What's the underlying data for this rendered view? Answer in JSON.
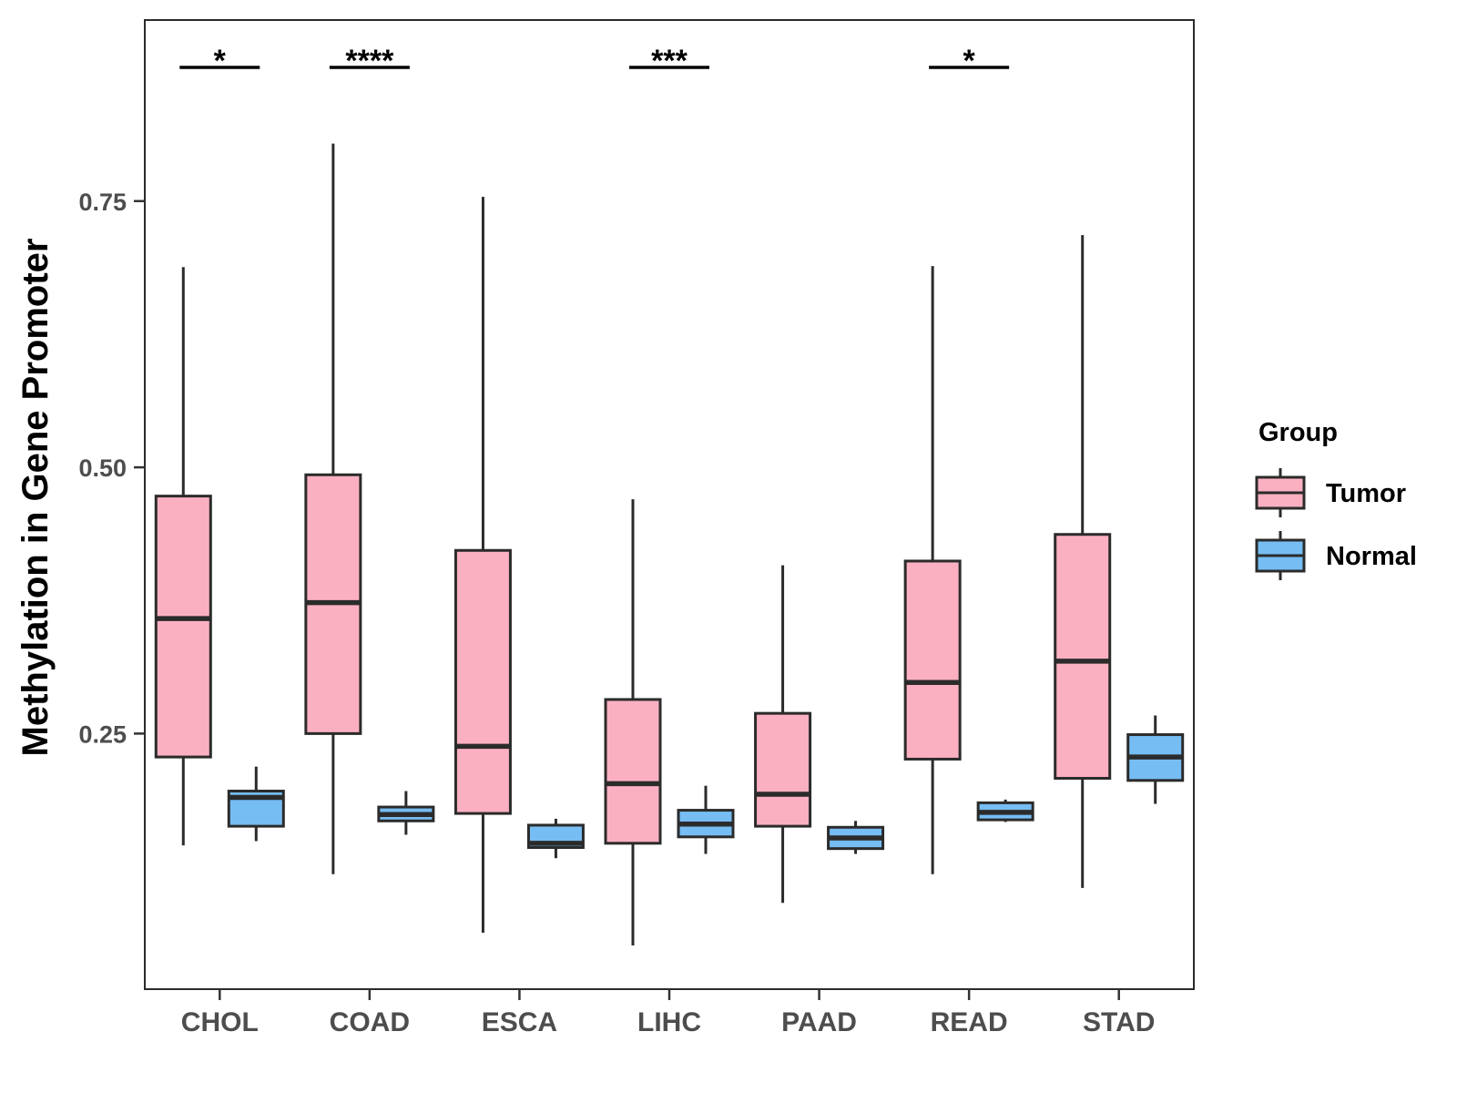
{
  "chart_data": {
    "type": "boxplot",
    "title": "",
    "xlabel": "",
    "ylabel": "Methylation in Gene Promoter",
    "ylim": [
      0.01,
      0.92
    ],
    "yticks": [
      0.25,
      0.5,
      0.75
    ],
    "ytick_labels": [
      "0.25",
      "0.50",
      "0.75"
    ],
    "grid": false,
    "legend_position": "right",
    "categories": [
      "CHOL",
      "COAD",
      "ESCA",
      "LIHC",
      "PAAD",
      "READ",
      "STAD"
    ],
    "series": [
      {
        "name": "Tumor",
        "color": "#FBB0C1",
        "boxes": [
          {
            "min": 0.145,
            "q1": 0.228,
            "median": 0.358,
            "q3": 0.473,
            "max": 0.688
          },
          {
            "min": 0.118,
            "q1": 0.25,
            "median": 0.373,
            "q3": 0.493,
            "max": 0.804
          },
          {
            "min": 0.063,
            "q1": 0.175,
            "median": 0.238,
            "q3": 0.422,
            "max": 0.754
          },
          {
            "min": 0.051,
            "q1": 0.147,
            "median": 0.203,
            "q3": 0.282,
            "max": 0.47
          },
          {
            "min": 0.091,
            "q1": 0.163,
            "median": 0.193,
            "q3": 0.269,
            "max": 0.408
          },
          {
            "min": 0.118,
            "q1": 0.226,
            "median": 0.298,
            "q3": 0.412,
            "max": 0.689
          },
          {
            "min": 0.105,
            "q1": 0.208,
            "median": 0.318,
            "q3": 0.437,
            "max": 0.718
          }
        ]
      },
      {
        "name": "Normal",
        "color": "#76BDF3",
        "boxes": [
          {
            "min": 0.149,
            "q1": 0.163,
            "median": 0.19,
            "q3": 0.196,
            "max": 0.219
          },
          {
            "min": 0.155,
            "q1": 0.168,
            "median": 0.174,
            "q3": 0.181,
            "max": 0.196
          },
          {
            "min": 0.133,
            "q1": 0.143,
            "median": 0.147,
            "q3": 0.164,
            "max": 0.17
          },
          {
            "min": 0.137,
            "q1": 0.153,
            "median": 0.165,
            "q3": 0.178,
            "max": 0.201
          },
          {
            "min": 0.137,
            "q1": 0.142,
            "median": 0.152,
            "q3": 0.162,
            "max": 0.168
          },
          {
            "min": 0.167,
            "q1": 0.169,
            "median": 0.176,
            "q3": 0.185,
            "max": 0.188
          },
          {
            "min": 0.184,
            "q1": 0.206,
            "median": 0.228,
            "q3": 0.249,
            "max": 0.267
          }
        ]
      }
    ],
    "significance": [
      {
        "category": "CHOL",
        "label": "*"
      },
      {
        "category": "COAD",
        "label": "****"
      },
      {
        "category": "LIHC",
        "label": "***"
      },
      {
        "category": "READ",
        "label": "*"
      }
    ],
    "legend": {
      "title": "Group",
      "entries": [
        "Tumor",
        "Normal"
      ]
    }
  }
}
